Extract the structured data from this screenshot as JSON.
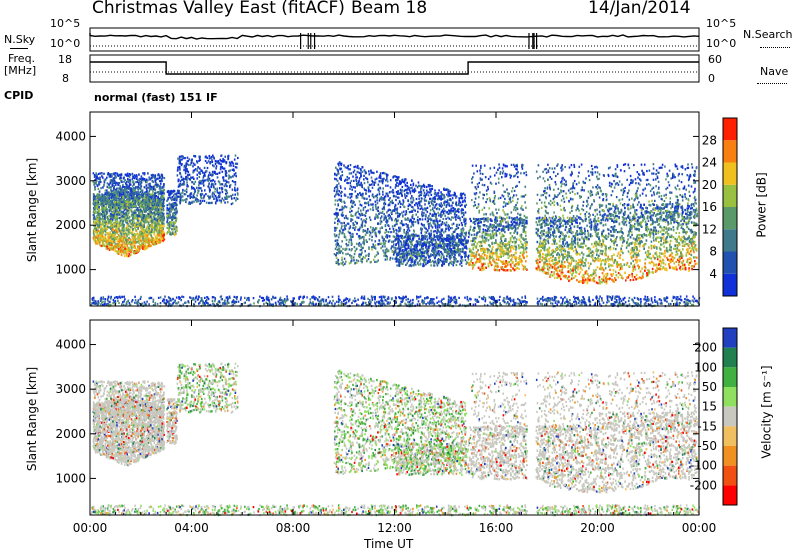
{
  "header": {
    "title": "Christmas Valley East (fitACF)",
    "beam": "Beam 18",
    "date": "14/Jan/2014"
  },
  "top_panels": {
    "nsky_label": "N.Sky",
    "nsky_ticks": [
      "10^5",
      "10^0"
    ],
    "nsearch_label": "N.Search",
    "nsearch_ticks": [
      "10^5",
      "10^0"
    ],
    "freq_label_1": "Freq.",
    "freq_label_2": "[MHz]",
    "freq_ticks": [
      "18",
      "8"
    ],
    "nave_label": "Nave",
    "nave_ticks": [
      "60",
      "0"
    ],
    "cpid_label": "CPID",
    "cpid_value": "normal (fast) 151 IF"
  },
  "chart_data": [
    {
      "type": "heatmap",
      "name": "power",
      "ylabel": "Slant Range [km]",
      "ylim": [
        180,
        4550
      ],
      "yticks": [
        1000,
        2000,
        3000,
        4000
      ],
      "xlim": [
        0,
        24
      ],
      "colorbar_label": "Power [dB]",
      "colorbar_ticks": [
        "4",
        "8",
        "12",
        "16",
        "20",
        "24",
        "28"
      ],
      "colorscale": [
        "#1030d8",
        "#2050b0",
        "#3f7a8c",
        "#5a9a6a",
        "#9ac040",
        "#f0c020",
        "#f88010",
        "#ff2000"
      ]
    },
    {
      "type": "heatmap",
      "name": "velocity",
      "ylabel": "Slant Range [km]",
      "ylim": [
        180,
        4550
      ],
      "yticks": [
        1000,
        2000,
        3000,
        4000
      ],
      "xlim": [
        0,
        24
      ],
      "xlabel": "Time UT",
      "xticks": [
        "00:00",
        "04:00",
        "08:00",
        "12:00",
        "16:00",
        "20:00",
        "00:00"
      ],
      "colorbar_label": "Velocity [m s⁻¹]",
      "colorbar_ticks": [
        "200",
        "100",
        "50",
        "15",
        "-15",
        "-50",
        "-100",
        "-200"
      ],
      "colorscale": [
        "#2040c0",
        "#208050",
        "#40b040",
        "#90e060",
        "#c8c8c0",
        "#f0c060",
        "#f09020",
        "#f05010",
        "#ff0000"
      ]
    }
  ]
}
